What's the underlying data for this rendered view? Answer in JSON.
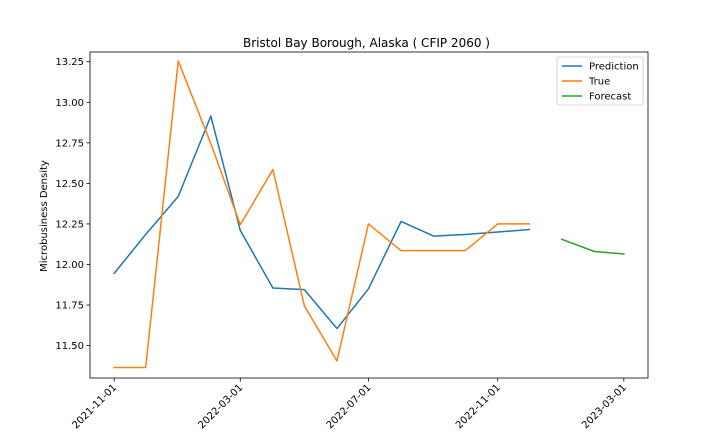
{
  "chart_data": {
    "type": "line",
    "title": "Bristol Bay Borough, Alaska ( CFIP 2060 )",
    "xlabel": "",
    "ylabel": "Microbusiness Density",
    "x_tick_labels": [
      "2021-11-01",
      "2022-03-01",
      "2022-07-01",
      "2022-11-01",
      "2023-03-01"
    ],
    "y_tick_labels": [
      "11.50",
      "11.75",
      "12.00",
      "12.25",
      "12.50",
      "12.75",
      "13.00",
      "13.25"
    ],
    "ylim": [
      11.3,
      13.31
    ],
    "xlim": [
      "2021-10-09",
      "2023-03-24"
    ],
    "grid": false,
    "legend_position": "top-right",
    "series": [
      {
        "name": "Prediction",
        "color": "#1f77b4",
        "x": [
          "2021-11-01",
          "2021-12-01",
          "2022-01-01",
          "2022-02-01",
          "2022-03-01",
          "2022-04-01",
          "2022-05-01",
          "2022-06-01",
          "2022-07-01",
          "2022-08-01",
          "2022-09-01",
          "2022-10-01",
          "2022-11-01",
          "2022-12-01"
        ],
        "y": [
          11.945,
          12.185,
          12.42,
          12.915,
          12.21,
          11.855,
          11.845,
          11.605,
          11.85,
          12.265,
          12.175,
          12.185,
          12.2,
          12.215
        ]
      },
      {
        "name": "True",
        "color": "#ff7f0e",
        "x": [
          "2021-11-01",
          "2021-12-01",
          "2022-01-01",
          "2022-02-01",
          "2022-03-01",
          "2022-04-01",
          "2022-05-01",
          "2022-06-01",
          "2022-07-01",
          "2022-08-01",
          "2022-09-01",
          "2022-10-01",
          "2022-11-01",
          "2022-12-01"
        ],
        "y": [
          11.365,
          11.365,
          13.255,
          12.745,
          12.245,
          12.585,
          11.745,
          11.405,
          12.25,
          12.085,
          12.085,
          12.085,
          12.25,
          12.25
        ]
      },
      {
        "name": "Forecast",
        "color": "#2ca02c",
        "x": [
          "2023-01-01",
          "2023-02-01",
          "2023-03-01"
        ],
        "y": [
          12.155,
          12.08,
          12.065
        ]
      }
    ]
  }
}
